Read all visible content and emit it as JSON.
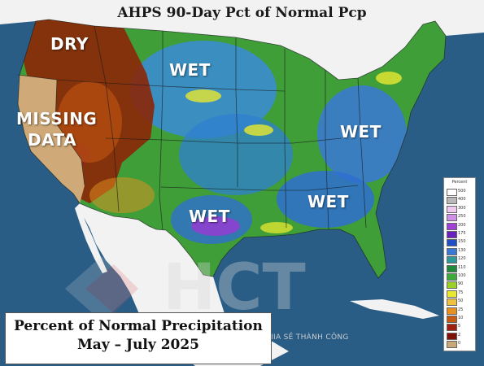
{
  "title": "AHPS 90-Day Pct of Normal Pcp",
  "labels": {
    "dry": "DRY",
    "missing_line1": "MISSING",
    "missing_line2": "DATA",
    "wet_plains": "WET",
    "wet_texas": "WET",
    "wet_east": "WET",
    "wet_southeast": "WET"
  },
  "caption": {
    "line1": "Percent of Normal Precipitation",
    "line2": "May – July 2025"
  },
  "legend": {
    "title": "Percent",
    "entries": [
      {
        "label": "500",
        "color": "#ffffff"
      },
      {
        "label": "400",
        "color": "#b8b8b8"
      },
      {
        "label": "300",
        "color": "#f0c8f0"
      },
      {
        "label": "250",
        "color": "#d090e8"
      },
      {
        "label": "200",
        "color": "#a040d8"
      },
      {
        "label": "175",
        "color": "#6a1fc0"
      },
      {
        "label": "150",
        "color": "#2050c8"
      },
      {
        "label": "130",
        "color": "#3a78d8"
      },
      {
        "label": "120",
        "color": "#2f9a9a"
      },
      {
        "label": "110",
        "color": "#1f8a3a"
      },
      {
        "label": "100",
        "color": "#3cab3c"
      },
      {
        "label": "90",
        "color": "#9ad028"
      },
      {
        "label": "75",
        "color": "#e8e830"
      },
      {
        "label": "50",
        "color": "#f0c040"
      },
      {
        "label": "25",
        "color": "#e89020"
      },
      {
        "label": "10",
        "color": "#c85a10"
      },
      {
        "label": "5",
        "color": "#a02010"
      },
      {
        "label": "2",
        "color": "#801008"
      },
      {
        "label": "0",
        "color": "#c8a878"
      }
    ]
  },
  "watermark": {
    "logo_text": "HCT",
    "tagline": "KIẾN TẠO GIÁ TRỊ – CHIA SẺ THÀNH CÔNG"
  },
  "colors": {
    "ocean": "#2a5d86",
    "foreign_land": "#f2f2f2",
    "wet": "#3b8bd8",
    "normal": "#3f9e38",
    "dry": "#8b2608",
    "missing": "#cfa978",
    "very_wet": "#8e3fd0"
  }
}
